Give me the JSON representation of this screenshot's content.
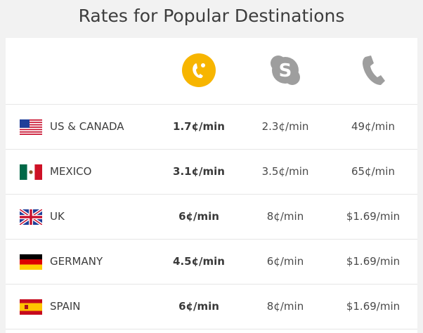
{
  "title": "Rates for Popular Destinations",
  "providers": [
    {
      "icon": "yellow-phone-app-icon",
      "color": "#f7b500"
    },
    {
      "icon": "skype-icon",
      "color": "#9e9e9e"
    },
    {
      "icon": "landline-phone-icon",
      "color": "#9e9e9e"
    }
  ],
  "rows": [
    {
      "country": "US & CANADA",
      "flag": "usa-flag-icon",
      "rates": [
        "1.7¢/min",
        "2.3¢/min",
        "49¢/min"
      ]
    },
    {
      "country": "MEXICO",
      "flag": "mexico-flag-icon",
      "rates": [
        "3.1¢/min",
        "3.5¢/min",
        "65¢/min"
      ]
    },
    {
      "country": "UK",
      "flag": "uk-flag-icon",
      "rates": [
        "6¢/min",
        "8¢/min",
        "$1.69/min"
      ]
    },
    {
      "country": "GERMANY",
      "flag": "germany-flag-icon",
      "rates": [
        "4.5¢/min",
        "6¢/min",
        "$1.69/min"
      ]
    },
    {
      "country": "SPAIN",
      "flag": "spain-flag-icon",
      "rates": [
        "6¢/min",
        "8¢/min",
        "$1.69/min"
      ]
    }
  ]
}
